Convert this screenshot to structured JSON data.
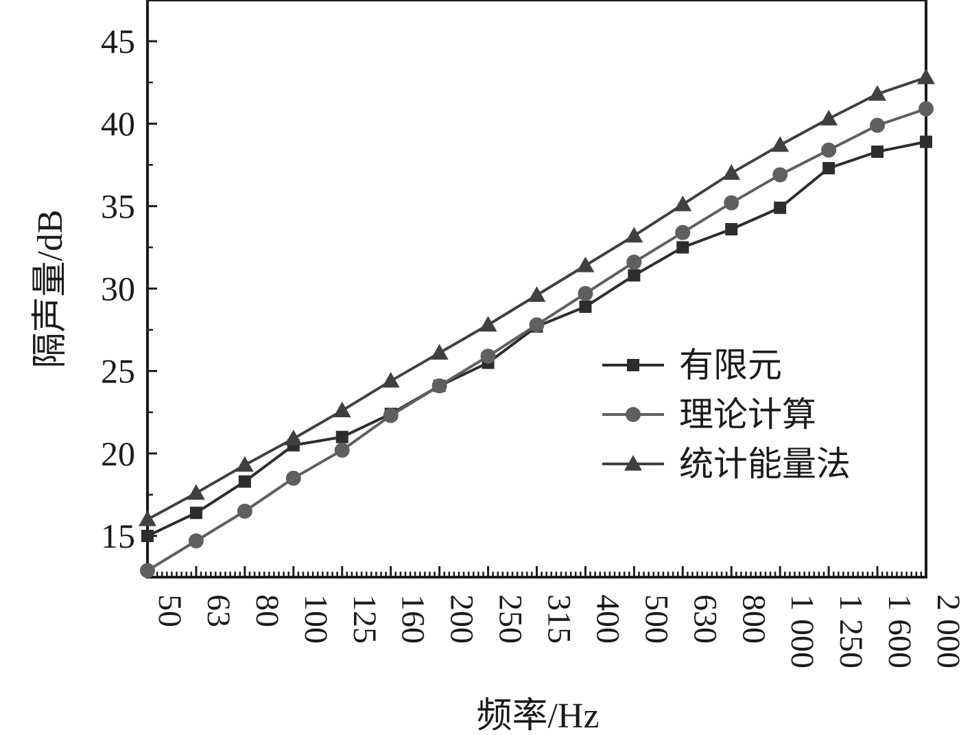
{
  "chart_data": {
    "type": "line",
    "xlabel": "频率/Hz",
    "ylabel": "隔声量/dB",
    "categories": [
      "50",
      "63",
      "80",
      "100",
      "125",
      "160",
      "200",
      "250",
      "315",
      "400",
      "500",
      "630",
      "800",
      "1 000",
      "1 250",
      "1 600",
      "2 000"
    ],
    "ylim": [
      12.5,
      47.5
    ],
    "yticks": [
      15,
      20,
      25,
      30,
      35,
      40,
      45
    ],
    "grid": false,
    "legend_position": "right",
    "series": [
      {
        "name": "有限元",
        "marker": "square",
        "color": "#2d2d2d",
        "values": [
          15.0,
          16.4,
          18.3,
          20.5,
          21.0,
          22.4,
          24.1,
          25.5,
          27.7,
          28.9,
          30.8,
          32.5,
          33.6,
          34.9,
          37.3,
          38.3,
          38.9
        ]
      },
      {
        "name": "理论计算",
        "marker": "circle",
        "color": "#5f5f5f",
        "values": [
          12.9,
          14.7,
          16.5,
          18.5,
          20.2,
          22.3,
          24.1,
          25.9,
          27.8,
          29.7,
          31.6,
          33.4,
          35.2,
          36.9,
          38.4,
          39.9,
          40.9
        ]
      },
      {
        "name": "统计能量法",
        "marker": "triangle",
        "color": "#404040",
        "values": [
          16.0,
          17.6,
          19.3,
          20.9,
          22.6,
          24.4,
          26.1,
          27.8,
          29.6,
          31.4,
          33.2,
          35.1,
          37.0,
          38.7,
          40.3,
          41.8,
          42.8
        ]
      }
    ]
  }
}
